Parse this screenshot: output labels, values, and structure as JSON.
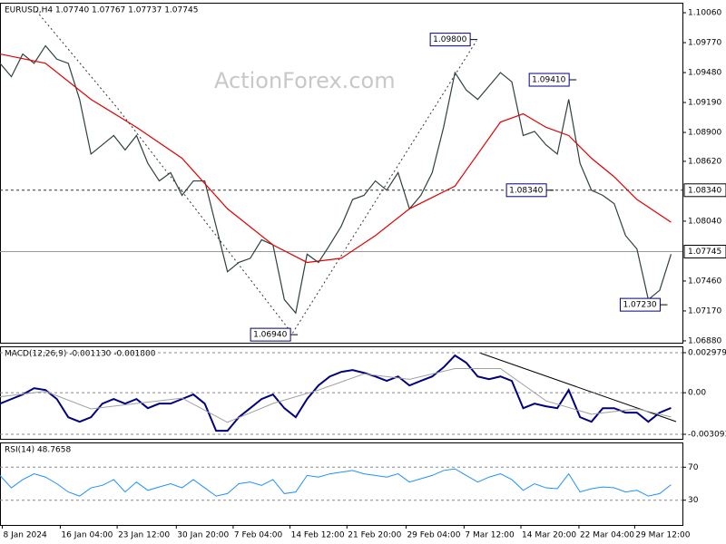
{
  "chart_data": [
    {
      "type": "line",
      "title": "EURUSD,H4  1.07740 1.07767 1.07737 1.07745",
      "watermark": "ActionForex.com",
      "xlim": [
        0,
        60
      ],
      "xticks": [
        {
          "value": 0.2,
          "label": "8 Jan 2024"
        },
        {
          "value": 5.3,
          "label": "16 Jan 04:00"
        },
        {
          "value": 10.3,
          "label": "23 Jan 12:00"
        },
        {
          "value": 15.5,
          "label": "30 Jan 20:00"
        },
        {
          "value": 20.5,
          "label": "7 Feb 04:00"
        },
        {
          "value": 25.5,
          "label": "14 Feb 12:00"
        },
        {
          "value": 30.5,
          "label": "21 Feb 20:00"
        },
        {
          "value": 35.7,
          "label": "29 Feb 04:00"
        },
        {
          "value": 40.8,
          "label": "7 Mar 12:00"
        },
        {
          "value": 45.8,
          "label": "14 Mar 20:00"
        },
        {
          "value": 50.9,
          "label": "22 Mar 04:00"
        },
        {
          "value": 55.8,
          "label": "29 Mar 12:00"
        }
      ],
      "ylim": [
        1.06862,
        1.10157
      ],
      "yticks": [
        {
          "value": 1.1006,
          "label": "1.10060"
        },
        {
          "value": 1.0977,
          "label": "1.09770"
        },
        {
          "value": 1.0948,
          "label": "1.09480"
        },
        {
          "value": 1.0919,
          "label": "1.09190"
        },
        {
          "value": 1.089,
          "label": "1.08900"
        },
        {
          "value": 1.0862,
          "label": "1.08620"
        },
        {
          "value": 1.0804,
          "label": "1.08040"
        },
        {
          "value": 1.0746,
          "label": "1.07460"
        },
        {
          "value": 1.0717,
          "label": "1.07170"
        },
        {
          "value": 1.0688,
          "label": "1.06880"
        }
      ],
      "series": [
        {
          "color": "#2f4040",
          "values": [
            1.0957,
            1.0944,
            1.0966,
            1.0957,
            1.0974,
            1.0961,
            1.0957,
            1.0922,
            1.0869,
            1.0878,
            1.0887,
            1.0873,
            1.0887,
            1.086,
            1.0843,
            1.0851,
            1.0829,
            1.0843,
            1.0843,
            1.0799,
            1.0755,
            1.0764,
            1.0768,
            1.0786,
            1.0781,
            1.0728,
            1.0715,
            1.0772,
            1.0764,
            1.0781,
            1.0799,
            1.0825,
            1.0829,
            1.0843,
            1.0834,
            1.0851,
            1.0816,
            1.0829,
            1.0851,
            1.0895,
            1.0948,
            1.0931,
            1.0922,
            1.0935,
            1.0948,
            1.0939,
            1.0887,
            1.0891,
            1.0878,
            1.0869,
            1.0922,
            1.086,
            1.0834,
            1.0829,
            1.0821,
            1.079,
            1.0777,
            1.0728,
            1.0737,
            1.0772
          ]
        },
        {
          "color": "#e00000",
          "x": [
            0,
            4,
            8,
            12,
            16,
            20,
            24,
            27,
            30,
            33,
            36,
            40,
            42,
            44,
            46,
            48,
            50,
            52,
            54,
            56,
            59
          ],
          "values": [
            1.0966,
            1.0957,
            1.0922,
            1.0895,
            1.0865,
            1.0816,
            1.0781,
            1.0764,
            1.0768,
            1.079,
            1.0816,
            1.0838,
            1.0869,
            1.09,
            1.0908,
            1.0895,
            1.0887,
            1.0865,
            1.0847,
            1.0825,
            1.0803
          ]
        }
      ],
      "hlines": [
        {
          "value": 1.0834,
          "label": "1.08340",
          "style": "dashed"
        },
        {
          "value": 1.07745,
          "label": "1.07745",
          "style": "solid"
        }
      ],
      "annotations": [
        {
          "x": 41.5,
          "value": 1.098,
          "label": "1.09800"
        },
        {
          "x": 50.2,
          "value": 1.0941,
          "label": "1.09410"
        },
        {
          "x": 48.2,
          "value": 1.0834,
          "label": "1.08340"
        },
        {
          "x": 58.2,
          "value": 1.0723,
          "label": "1.07230"
        },
        {
          "x": 25.7,
          "value": 1.0694,
          "label": "1.06940"
        }
      ]
    },
    {
      "type": "line",
      "title": "MACD(12,26,9) -0.001130 -0.001800",
      "ylim": [
        -0.00343,
        0.003451
      ],
      "yticks": [
        {
          "value": 0.002979,
          "label": "0.002979"
        },
        {
          "value": 0,
          "label": "0.00"
        },
        {
          "value": -0.003093,
          "label": "-0.003093"
        }
      ],
      "grid": true,
      "series": [
        {
          "color": "#000080",
          "width": 2,
          "values": [
            -0.00081,
            -0.00047,
            -0.00013,
            0.00034,
            0.0002,
            -0.00047,
            -0.00182,
            -0.00216,
            -0.00182,
            -0.00081,
            -0.00047,
            -0.00081,
            -0.00047,
            -0.00115,
            -0.00081,
            -0.00081,
            -0.00047,
            -0.00013,
            -0.00081,
            -0.00283,
            -0.00283,
            -0.00182,
            -0.00115,
            -0.00047,
            -0.00013,
            -0.00115,
            -0.00182,
            -0.00047,
            0.00054,
            0.00121,
            0.00155,
            0.00169,
            0.00148,
            0.00121,
            0.00088,
            0.00121,
            0.00054,
            0.00088,
            0.00121,
            0.00189,
            0.00277,
            0.00223,
            0.00121,
            0.00101,
            0.00121,
            0.00088,
            -0.00115,
            -0.00081,
            -0.00101,
            -0.00115,
            0.0002,
            -0.00182,
            -0.00216,
            -0.00115,
            -0.00115,
            -0.00148,
            -0.00148,
            -0.00216,
            -0.00148,
            -0.00113
          ]
        },
        {
          "color": "#a0a0a0",
          "width": 1,
          "x": [
            0,
            4,
            8,
            12,
            16,
            20,
            24,
            28,
            32,
            36,
            40,
            44,
            48,
            52,
            56,
            59
          ],
          "values": [
            -0.0003,
            0.0001,
            -0.0012,
            -0.0008,
            -0.0004,
            -0.0022,
            -0.0008,
            0.0002,
            0.0014,
            0.001,
            0.0018,
            0.0018,
            -0.0006,
            -0.0016,
            -0.0012,
            -0.0018
          ]
        }
      ]
    },
    {
      "type": "line",
      "title": "RSI(14) 48.7658",
      "ylim": [
        0,
        100
      ],
      "yticks": [
        70,
        30
      ],
      "grid": true,
      "series": [
        {
          "color": "#1e90ff",
          "width": 1,
          "values": [
            60,
            45,
            55,
            62,
            58,
            50,
            40,
            35,
            45,
            48,
            55,
            40,
            52,
            42,
            46,
            50,
            45,
            55,
            45,
            35,
            38,
            50,
            52,
            48,
            55,
            38,
            40,
            60,
            58,
            62,
            64,
            66,
            62,
            60,
            58,
            62,
            52,
            56,
            60,
            66,
            68,
            60,
            52,
            58,
            62,
            55,
            42,
            50,
            45,
            44,
            62,
            40,
            44,
            46,
            45,
            40,
            42,
            35,
            38,
            48.7658
          ]
        }
      ]
    }
  ]
}
